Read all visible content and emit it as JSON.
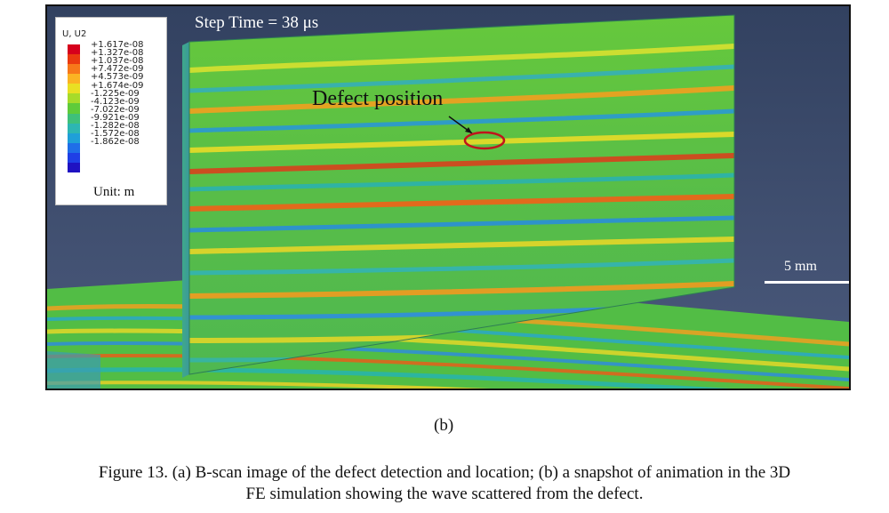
{
  "step_time": "Step Time = 38 μs",
  "defect_label": "Defect position",
  "legend": {
    "title": "U, U2",
    "values": [
      "+1.617e-08",
      "+1.327e-08",
      "+1.037e-08",
      "+7.472e-09",
      "+4.573e-09",
      "+1.674e-09",
      "-1.225e-09",
      "-4.123e-09",
      "-7.022e-09",
      "-9.921e-09",
      "-1.282e-08",
      "-1.572e-08",
      "-1.862e-08"
    ],
    "colors": [
      "#d6001c",
      "#ea3a10",
      "#f7781a",
      "#fbb323",
      "#e9e023",
      "#a7db2a",
      "#5fcb3a",
      "#3fc07a",
      "#2db6b2",
      "#1f9fd8",
      "#1f6ee8",
      "#1f3fe6",
      "#1f12c2"
    ],
    "unit": "Unit: m"
  },
  "scale_bar": "5 mm",
  "panel_label": "(b)",
  "caption": {
    "line1": "Figure 13. (a) B-scan image of the defect detection and location; (b) a snapshot of animation in the 3D",
    "line2": "FE simulation showing the wave scattered from the defect."
  }
}
